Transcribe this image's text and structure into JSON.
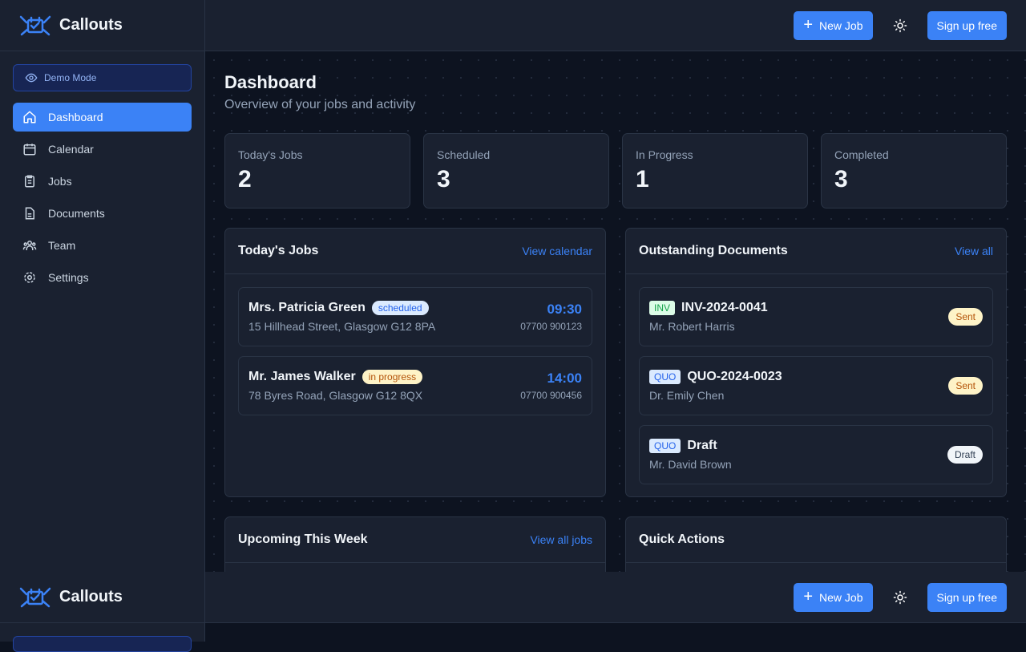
{
  "app": {
    "name": "Callouts"
  },
  "sidebar": {
    "demo_label": "Demo Mode",
    "items": [
      {
        "label": "Dashboard",
        "icon": "home-icon",
        "active": true
      },
      {
        "label": "Calendar",
        "icon": "calendar-icon"
      },
      {
        "label": "Jobs",
        "icon": "clipboard-icon"
      },
      {
        "label": "Documents",
        "icon": "document-icon"
      },
      {
        "label": "Team",
        "icon": "team-icon"
      },
      {
        "label": "Settings",
        "icon": "gear-icon"
      }
    ]
  },
  "topbar": {
    "new_job": "New Job",
    "signup": "Sign up free",
    "theme_icon": "sun-icon"
  },
  "page": {
    "title": "Dashboard",
    "subtitle": "Overview of your jobs and activity"
  },
  "stats": [
    {
      "label": "Today's Jobs",
      "value": "2"
    },
    {
      "label": "Scheduled",
      "value": "3"
    },
    {
      "label": "In Progress",
      "value": "1"
    },
    {
      "label": "Completed",
      "value": "3"
    }
  ],
  "todays_jobs": {
    "title": "Today's Jobs",
    "link": "View calendar",
    "jobs": [
      {
        "name": "Mrs. Patricia Green",
        "status": "scheduled",
        "address": "15 Hillhead Street, Glasgow G12 8PA",
        "time": "09:30",
        "phone": "07700 900123"
      },
      {
        "name": "Mr. James Walker",
        "status": "in progress",
        "address": "78 Byres Road, Glasgow G12 8QX",
        "time": "14:00",
        "phone": "07700 900456"
      }
    ]
  },
  "documents": {
    "title": "Outstanding Documents",
    "link": "View all",
    "items": [
      {
        "type": "INV",
        "number": "INV-2024-0041",
        "client": "Mr. Robert Harris",
        "status": "Sent"
      },
      {
        "type": "QUO",
        "number": "QUO-2024-0023",
        "client": "Dr. Emily Chen",
        "status": "Sent"
      },
      {
        "type": "QUO",
        "number": "Draft",
        "client": "Mr. David Brown",
        "status": "Draft"
      }
    ]
  },
  "upcoming": {
    "title": "Upcoming This Week",
    "link": "View all jobs"
  },
  "quick_actions": {
    "title": "Quick Actions"
  },
  "colors": {
    "accent": "#3b82f6",
    "sidebar": "#1a2130",
    "background": "#0d1320"
  }
}
